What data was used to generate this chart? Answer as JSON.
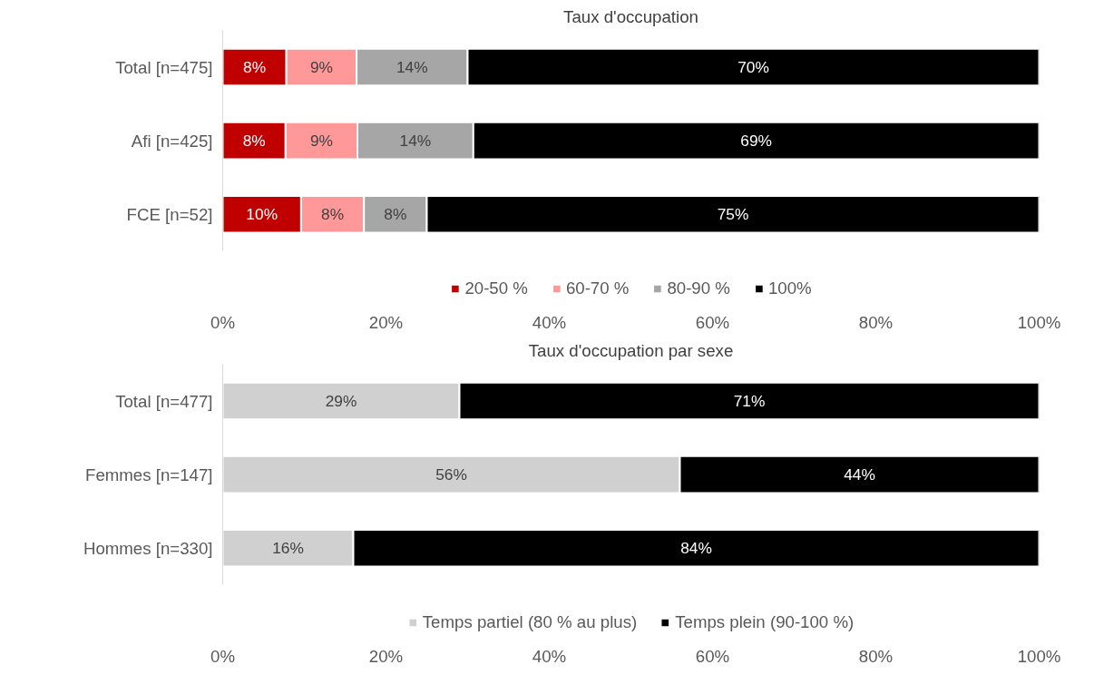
{
  "chart_data": [
    {
      "type": "bar",
      "orientation": "horizontal",
      "stacked": true,
      "title": "Taux d'occupation",
      "categories": [
        "Total [n=475]",
        "Afi [n=425]",
        "FCE [n=52]"
      ],
      "xlim": [
        0,
        100
      ],
      "xticks": [
        {
          "value": 0,
          "label": "0%"
        },
        {
          "value": 20,
          "label": "20%"
        },
        {
          "value": 40,
          "label": "40%"
        },
        {
          "value": 60,
          "label": "60%"
        },
        {
          "value": 80,
          "label": "80%"
        },
        {
          "value": 100,
          "label": "100%"
        }
      ],
      "grid": false,
      "legend": "bottom",
      "series": [
        {
          "name": "20-50 %",
          "color": "#c00000",
          "values": [
            7.8,
            7.7,
            9.6
          ],
          "value_labels": [
            "8%",
            "8%",
            "10%"
          ]
        },
        {
          "name": "60-70 %",
          "color": "#ff9999",
          "values": [
            8.6,
            8.8,
            7.7
          ],
          "value_labels": [
            "9%",
            "9%",
            "8%"
          ]
        },
        {
          "name": "80-90 %",
          "color": "#a6a6a6",
          "values": [
            13.6,
            14.2,
            7.7
          ],
          "value_labels": [
            "14%",
            "14%",
            "8%"
          ]
        },
        {
          "name": "100%",
          "color": "#000000",
          "values": [
            70.0,
            69.3,
            75.0
          ],
          "value_labels": [
            "70%",
            "69%",
            "75%"
          ]
        }
      ]
    },
    {
      "type": "bar",
      "orientation": "horizontal",
      "stacked": true,
      "title": "Taux d'occupation par sexe",
      "categories": [
        "Total [n=477]",
        "Femmes [n=147]",
        "Hommes [n=330]"
      ],
      "xlim": [
        0,
        100
      ],
      "xticks": [
        {
          "value": 0,
          "label": "0%"
        },
        {
          "value": 20,
          "label": "20%"
        },
        {
          "value": 40,
          "label": "40%"
        },
        {
          "value": 60,
          "label": "60%"
        },
        {
          "value": 80,
          "label": "80%"
        },
        {
          "value": 100,
          "label": "100%"
        }
      ],
      "grid": false,
      "legend": "bottom",
      "series": [
        {
          "name": "Temps partiel (80 % au plus)",
          "color": "#d0d0d0",
          "values": [
            29,
            56,
            16
          ],
          "value_labels": [
            "29%",
            "56%",
            "16%"
          ]
        },
        {
          "name": "Temps plein (90-100 %)",
          "color": "#000000",
          "values": [
            71,
            44,
            84
          ],
          "value_labels": [
            "71%",
            "44%",
            "84%"
          ]
        }
      ]
    }
  ]
}
